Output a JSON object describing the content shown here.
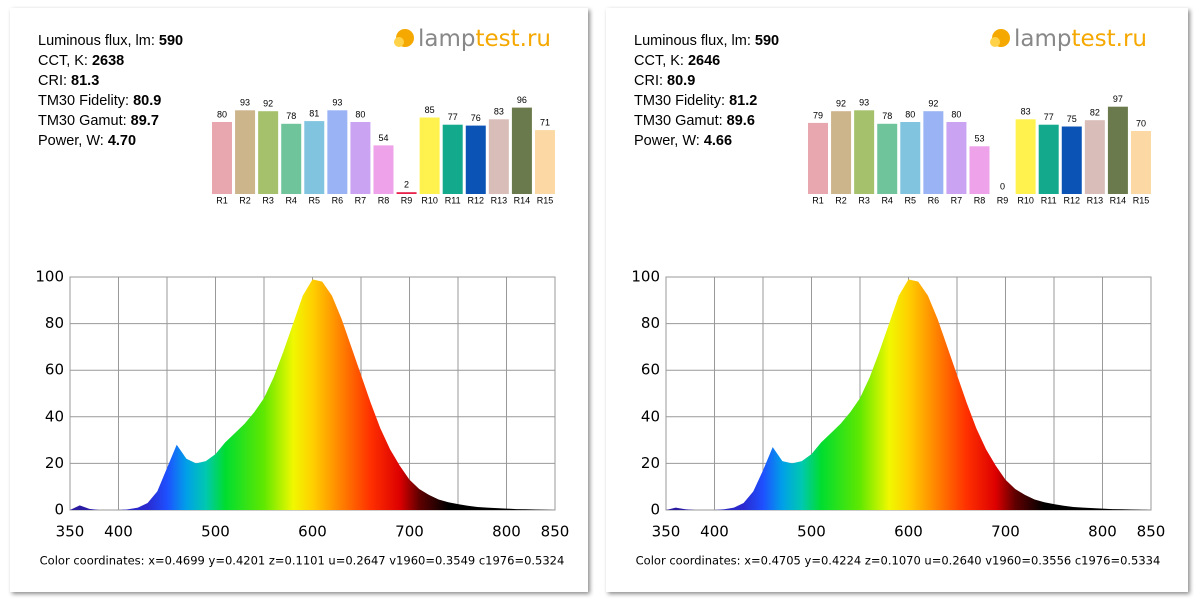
{
  "chart_data": [
    {
      "type": "bar",
      "annotations": [
        [
          "Luminous flux, lm:",
          "590"
        ],
        [
          "CCT, K:",
          "2638"
        ],
        [
          "CRI:",
          "81.3"
        ],
        [
          "TM30 Fidelity:",
          "80.9"
        ],
        [
          "TM30 Gamut:",
          "89.7"
        ],
        [
          "Power, W:",
          "4.70"
        ]
      ],
      "logo": [
        "lamp",
        "test.ru"
      ],
      "categories": [
        "R1",
        "R2",
        "R3",
        "R4",
        "R5",
        "R6",
        "R7",
        "R8",
        "R9",
        "R10",
        "R11",
        "R12",
        "R13",
        "R14",
        "R15"
      ],
      "values": [
        80,
        93,
        92,
        78,
        81,
        93,
        80,
        54,
        2,
        85,
        77,
        76,
        83,
        96,
        71
      ],
      "colors": [
        "#e8a6ae",
        "#ccb48b",
        "#a6c16c",
        "#70c49c",
        "#80c4e0",
        "#9ab3f4",
        "#caa3f2",
        "#eda2e9",
        "#e8204a",
        "#fff24e",
        "#12a98c",
        "#0b54b5",
        "#d8bdb9",
        "#6b7a4c",
        "#fcd9a4"
      ],
      "ylim": [
        0,
        100
      ]
    },
    {
      "type": "area",
      "x": [
        350,
        360,
        370,
        380,
        390,
        400,
        410,
        420,
        430,
        440,
        450,
        460,
        470,
        480,
        490,
        500,
        510,
        520,
        530,
        540,
        550,
        560,
        570,
        580,
        590,
        600,
        610,
        620,
        630,
        640,
        650,
        660,
        670,
        680,
        690,
        700,
        710,
        720,
        730,
        740,
        750,
        760,
        770,
        780,
        790,
        800,
        810,
        820,
        830,
        840,
        850
      ],
      "values": [
        0,
        2,
        0.5,
        0,
        0,
        0,
        0.3,
        1,
        3,
        8,
        18,
        28,
        22,
        20,
        21,
        24,
        29,
        33,
        37,
        42,
        48,
        57,
        68,
        80,
        92,
        99,
        98,
        92,
        82,
        70,
        58,
        46,
        35,
        26,
        19,
        13,
        9,
        6.5,
        4.5,
        3.3,
        2.5,
        1.8,
        1.3,
        1,
        0.8,
        0.6,
        0.4,
        0.3,
        0.2,
        0.1,
        0
      ],
      "xlim": [
        350,
        850
      ],
      "ylim": [
        0,
        100
      ],
      "xticks": [
        350,
        400,
        500,
        600,
        700,
        800,
        850
      ],
      "xgrid": [
        350,
        400,
        450,
        500,
        550,
        600,
        650,
        700,
        750,
        800,
        850
      ],
      "yticks": [
        0,
        20,
        40,
        60,
        80,
        100
      ],
      "grid": true,
      "footnote": "Color coordinates: x=0.4699 y=0.4201 z=0.1101 u=0.2647 v1960=0.3549 c1976=0.5324"
    },
    {
      "type": "bar",
      "annotations": [
        [
          "Luminous flux, lm:",
          "590"
        ],
        [
          "CCT, K:",
          "2646"
        ],
        [
          "CRI:",
          "80.9"
        ],
        [
          "TM30 Fidelity:",
          "81.2"
        ],
        [
          "TM30 Gamut:",
          "89.6"
        ],
        [
          "Power, W:",
          "4.66"
        ]
      ],
      "logo": [
        "lamp",
        "test.ru"
      ],
      "categories": [
        "R1",
        "R2",
        "R3",
        "R4",
        "R5",
        "R6",
        "R7",
        "R8",
        "R9",
        "R10",
        "R11",
        "R12",
        "R13",
        "R14",
        "R15"
      ],
      "values": [
        79,
        92,
        93,
        78,
        80,
        92,
        80,
        53,
        0,
        83,
        77,
        75,
        82,
        97,
        70
      ],
      "colors": [
        "#e8a6ae",
        "#ccb48b",
        "#a6c16c",
        "#70c49c",
        "#80c4e0",
        "#9ab3f4",
        "#caa3f2",
        "#eda2e9",
        "#e8204a",
        "#fff24e",
        "#12a98c",
        "#0b54b5",
        "#d8bdb9",
        "#6b7a4c",
        "#fcd9a4"
      ],
      "ylim": [
        0,
        100
      ]
    },
    {
      "type": "area",
      "x": [
        350,
        360,
        370,
        380,
        390,
        400,
        410,
        420,
        430,
        440,
        450,
        460,
        470,
        480,
        490,
        500,
        510,
        520,
        530,
        540,
        550,
        560,
        570,
        580,
        590,
        600,
        610,
        620,
        630,
        640,
        650,
        660,
        670,
        680,
        690,
        700,
        710,
        720,
        730,
        740,
        750,
        760,
        770,
        780,
        790,
        800,
        810,
        820,
        830,
        840,
        850
      ],
      "values": [
        0,
        1,
        0.3,
        0,
        0,
        0,
        0.3,
        1,
        3,
        8,
        17,
        27,
        21,
        20,
        21,
        24,
        29,
        33,
        37,
        42,
        48,
        57,
        68,
        80,
        92,
        99,
        98,
        92,
        82,
        70,
        58,
        46,
        35,
        26,
        19,
        13,
        9,
        6.5,
        4.5,
        3.3,
        2.5,
        1.8,
        1.3,
        1,
        0.8,
        0.6,
        0.4,
        0.3,
        0.2,
        0.1,
        0
      ],
      "xlim": [
        350,
        850
      ],
      "ylim": [
        0,
        100
      ],
      "xticks": [
        350,
        400,
        500,
        600,
        700,
        800,
        850
      ],
      "xgrid": [
        350,
        400,
        450,
        500,
        550,
        600,
        650,
        700,
        750,
        800,
        850
      ],
      "yticks": [
        0,
        20,
        40,
        60,
        80,
        100
      ],
      "grid": true,
      "footnote": "Color coordinates: x=0.4705 y=0.4224 z=0.1070 u=0.2640 v1960=0.3556 c1976=0.5334"
    }
  ]
}
